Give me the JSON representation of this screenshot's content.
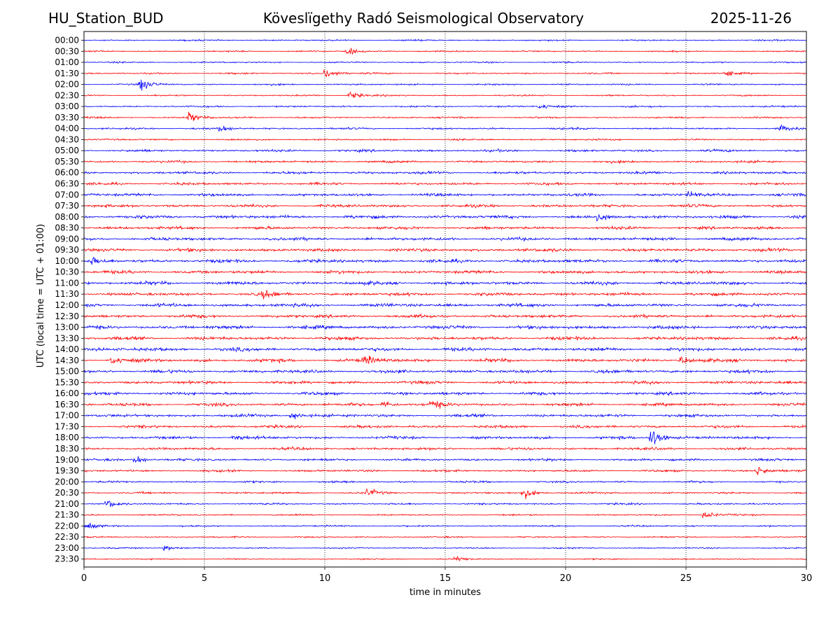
{
  "header": {
    "station": "HU_Station_BUD",
    "observatory": "Köveslïgethy Radó Seismological Observatory",
    "date": "2025-11-26"
  },
  "chart_data": {
    "type": "line",
    "title": "Köveslïgethy Radó Seismological Observatory",
    "xlabel": "time in minutes",
    "ylabel": "UTC (local time = UTC + 01:00)",
    "xlim": [
      0,
      30
    ],
    "xticks": [
      0,
      5,
      10,
      15,
      20,
      25,
      30
    ],
    "grid": "vertical dotted lines at x ticks",
    "trace_colors": [
      "#0000ff",
      "#ff0000"
    ],
    "rows": [
      "00:00",
      "00:30",
      "01:00",
      "01:30",
      "02:00",
      "02:30",
      "03:00",
      "03:30",
      "04:00",
      "04:30",
      "05:00",
      "05:30",
      "06:00",
      "06:30",
      "07:00",
      "07:30",
      "08:00",
      "08:30",
      "09:00",
      "09:30",
      "10:00",
      "10:30",
      "11:00",
      "11:30",
      "12:00",
      "12:30",
      "13:00",
      "13:30",
      "14:00",
      "14:30",
      "15:00",
      "15:30",
      "16:00",
      "16:30",
      "17:00",
      "17:30",
      "18:00",
      "18:30",
      "19:00",
      "19:30",
      "20:00",
      "20:30",
      "21:00",
      "21:30",
      "22:00",
      "22:30",
      "23:00",
      "23:30"
    ],
    "noise_level": [
      0.5,
      0.5,
      0.5,
      0.55,
      0.55,
      0.5,
      0.6,
      0.6,
      0.65,
      0.6,
      0.8,
      0.8,
      0.9,
      0.9,
      1.0,
      1.0,
      1.1,
      1.05,
      1.1,
      1.1,
      1.15,
      1.1,
      1.15,
      1.1,
      1.15,
      1.1,
      1.2,
      1.15,
      1.2,
      1.15,
      1.1,
      1.05,
      1.05,
      1.0,
      1.0,
      0.95,
      0.95,
      0.9,
      0.8,
      0.75,
      0.65,
      0.65,
      0.6,
      0.55,
      0.55,
      0.5,
      0.45,
      0.45
    ],
    "events": [
      {
        "row": 1,
        "minute": 11.0,
        "amp": 2.0
      },
      {
        "row": 3,
        "minute": 10.1,
        "amp": 3.5
      },
      {
        "row": 3,
        "minute": 26.7,
        "amp": 1.8
      },
      {
        "row": 4,
        "minute": 2.4,
        "amp": 4.0
      },
      {
        "row": 5,
        "minute": 11.1,
        "amp": 2.4
      },
      {
        "row": 6,
        "minute": 19.0,
        "amp": 1.6
      },
      {
        "row": 7,
        "minute": 4.4,
        "amp": 3.2
      },
      {
        "row": 8,
        "minute": 5.7,
        "amp": 1.8
      },
      {
        "row": 8,
        "minute": 29.0,
        "amp": 1.6
      },
      {
        "row": 14,
        "minute": 25.2,
        "amp": 2.0
      },
      {
        "row": 16,
        "minute": 21.4,
        "amp": 2.0
      },
      {
        "row": 20,
        "minute": 0.4,
        "amp": 1.8
      },
      {
        "row": 23,
        "minute": 7.5,
        "amp": 2.0
      },
      {
        "row": 29,
        "minute": 1.2,
        "amp": 2.2
      },
      {
        "row": 29,
        "minute": 11.7,
        "amp": 2.5
      },
      {
        "row": 29,
        "minute": 24.8,
        "amp": 2.2
      },
      {
        "row": 33,
        "minute": 12.5,
        "amp": 2.4
      },
      {
        "row": 33,
        "minute": 14.5,
        "amp": 2.4
      },
      {
        "row": 34,
        "minute": 8.7,
        "amp": 2.2
      },
      {
        "row": 36,
        "minute": 23.6,
        "amp": 6.5
      },
      {
        "row": 36,
        "minute": 6.3,
        "amp": 1.8
      },
      {
        "row": 38,
        "minute": 2.2,
        "amp": 2.6
      },
      {
        "row": 39,
        "minute": 28.0,
        "amp": 3.0
      },
      {
        "row": 41,
        "minute": 18.3,
        "amp": 3.2
      },
      {
        "row": 41,
        "minute": 11.8,
        "amp": 2.2
      },
      {
        "row": 42,
        "minute": 1.0,
        "amp": 2.6
      },
      {
        "row": 43,
        "minute": 25.8,
        "amp": 2.4
      },
      {
        "row": 44,
        "minute": 0.1,
        "amp": 2.2
      },
      {
        "row": 46,
        "minute": 3.4,
        "amp": 1.8
      },
      {
        "row": 47,
        "minute": 15.5,
        "amp": 1.6
      }
    ]
  }
}
